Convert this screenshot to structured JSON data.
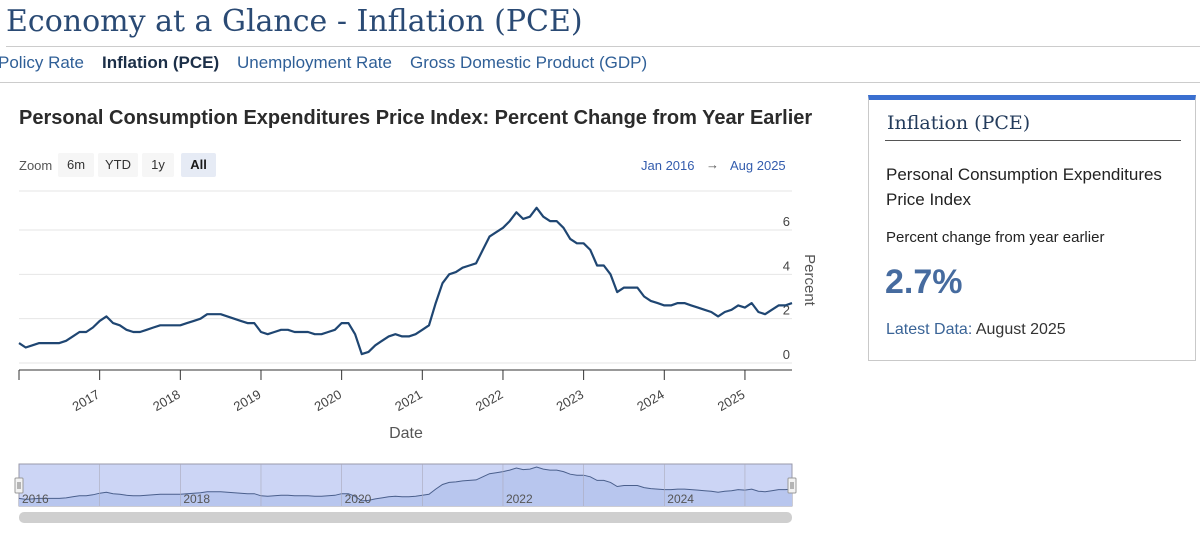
{
  "page": {
    "title": "Economy at a Glance - Inflation (PCE)"
  },
  "tabs": [
    {
      "label": "Policy Rate"
    },
    {
      "label": "Inflation (PCE)"
    },
    {
      "label": "Unemployment Rate"
    },
    {
      "label": "Gross Domestic Product (GDP)"
    }
  ],
  "active_tab": "Inflation (PCE)",
  "zoom": {
    "label": "Zoom",
    "buttons": [
      "6m",
      "YTD",
      "1y",
      "All"
    ],
    "selected": "All",
    "range_from": "Jan 2016",
    "range_arrow": "→",
    "range_to": "Aug 2025"
  },
  "colors": {
    "line": "#1f4672",
    "accent": "#3a6fd0",
    "navigator_fill": "#ccd5f5"
  },
  "chart_data": {
    "type": "line",
    "title": "Personal Consumption Expenditures Price Index: Percent Change from Year Earlier",
    "xlabel": "Date",
    "ylabel": "Percent",
    "x_range": [
      "2016-01",
      "2025-08"
    ],
    "ylim": [
      0,
      7
    ],
    "yticks": [
      0,
      2,
      4,
      6
    ],
    "xticks": [
      "2017",
      "2018",
      "2019",
      "2020",
      "2021",
      "2022",
      "2023",
      "2024",
      "2025"
    ],
    "navigator_ticks": [
      "2016",
      "2018",
      "2020",
      "2022",
      "2024"
    ],
    "grid": true,
    "series": [
      {
        "values": [
          [
            "2016-01",
            0.9
          ],
          [
            "2016-02",
            0.7
          ],
          [
            "2016-03",
            0.8
          ],
          [
            "2016-04",
            0.9
          ],
          [
            "2016-05",
            0.9
          ],
          [
            "2016-06",
            0.9
          ],
          [
            "2016-07",
            0.9
          ],
          [
            "2016-08",
            1.0
          ],
          [
            "2016-09",
            1.2
          ],
          [
            "2016-10",
            1.4
          ],
          [
            "2016-11",
            1.4
          ],
          [
            "2016-12",
            1.6
          ],
          [
            "2017-01",
            1.9
          ],
          [
            "2017-02",
            2.1
          ],
          [
            "2017-03",
            1.8
          ],
          [
            "2017-04",
            1.7
          ],
          [
            "2017-05",
            1.5
          ],
          [
            "2017-06",
            1.4
          ],
          [
            "2017-07",
            1.4
          ],
          [
            "2017-08",
            1.5
          ],
          [
            "2017-09",
            1.6
          ],
          [
            "2017-10",
            1.7
          ],
          [
            "2017-11",
            1.7
          ],
          [
            "2017-12",
            1.7
          ],
          [
            "2018-01",
            1.7
          ],
          [
            "2018-02",
            1.8
          ],
          [
            "2018-03",
            1.9
          ],
          [
            "2018-04",
            2.0
          ],
          [
            "2018-05",
            2.2
          ],
          [
            "2018-06",
            2.2
          ],
          [
            "2018-07",
            2.2
          ],
          [
            "2018-08",
            2.1
          ],
          [
            "2018-09",
            2.0
          ],
          [
            "2018-10",
            1.9
          ],
          [
            "2018-11",
            1.8
          ],
          [
            "2018-12",
            1.8
          ],
          [
            "2019-01",
            1.4
          ],
          [
            "2019-02",
            1.3
          ],
          [
            "2019-03",
            1.4
          ],
          [
            "2019-04",
            1.5
          ],
          [
            "2019-05",
            1.5
          ],
          [
            "2019-06",
            1.4
          ],
          [
            "2019-07",
            1.4
          ],
          [
            "2019-08",
            1.4
          ],
          [
            "2019-09",
            1.3
          ],
          [
            "2019-10",
            1.3
          ],
          [
            "2019-11",
            1.4
          ],
          [
            "2019-12",
            1.5
          ],
          [
            "2020-01",
            1.8
          ],
          [
            "2020-02",
            1.8
          ],
          [
            "2020-03",
            1.3
          ],
          [
            "2020-04",
            0.4
          ],
          [
            "2020-05",
            0.5
          ],
          [
            "2020-06",
            0.8
          ],
          [
            "2020-07",
            1.0
          ],
          [
            "2020-08",
            1.2
          ],
          [
            "2020-09",
            1.3
          ],
          [
            "2020-10",
            1.2
          ],
          [
            "2020-11",
            1.2
          ],
          [
            "2020-12",
            1.3
          ],
          [
            "2021-01",
            1.5
          ],
          [
            "2021-02",
            1.7
          ],
          [
            "2021-03",
            2.7
          ],
          [
            "2021-04",
            3.6
          ],
          [
            "2021-05",
            4.0
          ],
          [
            "2021-06",
            4.1
          ],
          [
            "2021-07",
            4.3
          ],
          [
            "2021-08",
            4.4
          ],
          [
            "2021-09",
            4.5
          ],
          [
            "2021-10",
            5.1
          ],
          [
            "2021-11",
            5.7
          ],
          [
            "2021-12",
            5.9
          ],
          [
            "2022-01",
            6.1
          ],
          [
            "2022-02",
            6.4
          ],
          [
            "2022-03",
            6.8
          ],
          [
            "2022-04",
            6.5
          ],
          [
            "2022-05",
            6.6
          ],
          [
            "2022-06",
            7.0
          ],
          [
            "2022-07",
            6.6
          ],
          [
            "2022-08",
            6.4
          ],
          [
            "2022-09",
            6.4
          ],
          [
            "2022-10",
            6.1
          ],
          [
            "2022-11",
            5.6
          ],
          [
            "2022-12",
            5.4
          ],
          [
            "2023-01",
            5.4
          ],
          [
            "2023-02",
            5.1
          ],
          [
            "2023-03",
            4.4
          ],
          [
            "2023-04",
            4.4
          ],
          [
            "2023-05",
            4.0
          ],
          [
            "2023-06",
            3.2
          ],
          [
            "2023-07",
            3.4
          ],
          [
            "2023-08",
            3.4
          ],
          [
            "2023-09",
            3.4
          ],
          [
            "2023-10",
            3.0
          ],
          [
            "2023-11",
            2.8
          ],
          [
            "2023-12",
            2.7
          ],
          [
            "2024-01",
            2.6
          ],
          [
            "2024-02",
            2.6
          ],
          [
            "2024-03",
            2.7
          ],
          [
            "2024-04",
            2.7
          ],
          [
            "2024-05",
            2.6
          ],
          [
            "2024-06",
            2.5
          ],
          [
            "2024-07",
            2.4
          ],
          [
            "2024-08",
            2.3
          ],
          [
            "2024-09",
            2.1
          ],
          [
            "2024-10",
            2.3
          ],
          [
            "2024-11",
            2.4
          ],
          [
            "2024-12",
            2.6
          ],
          [
            "2025-01",
            2.5
          ],
          [
            "2025-02",
            2.7
          ],
          [
            "2025-03",
            2.3
          ],
          [
            "2025-04",
            2.2
          ],
          [
            "2025-05",
            2.4
          ],
          [
            "2025-06",
            2.6
          ],
          [
            "2025-07",
            2.6
          ],
          [
            "2025-08",
            2.7
          ]
        ]
      }
    ]
  },
  "card": {
    "title": "Inflation (PCE)",
    "series_name": "Personal Consumption Expenditures Price Index",
    "subtitle": "Percent change from year earlier",
    "value": "2.7%",
    "latest_label": "Latest Data:",
    "latest_value": "August 2025"
  }
}
